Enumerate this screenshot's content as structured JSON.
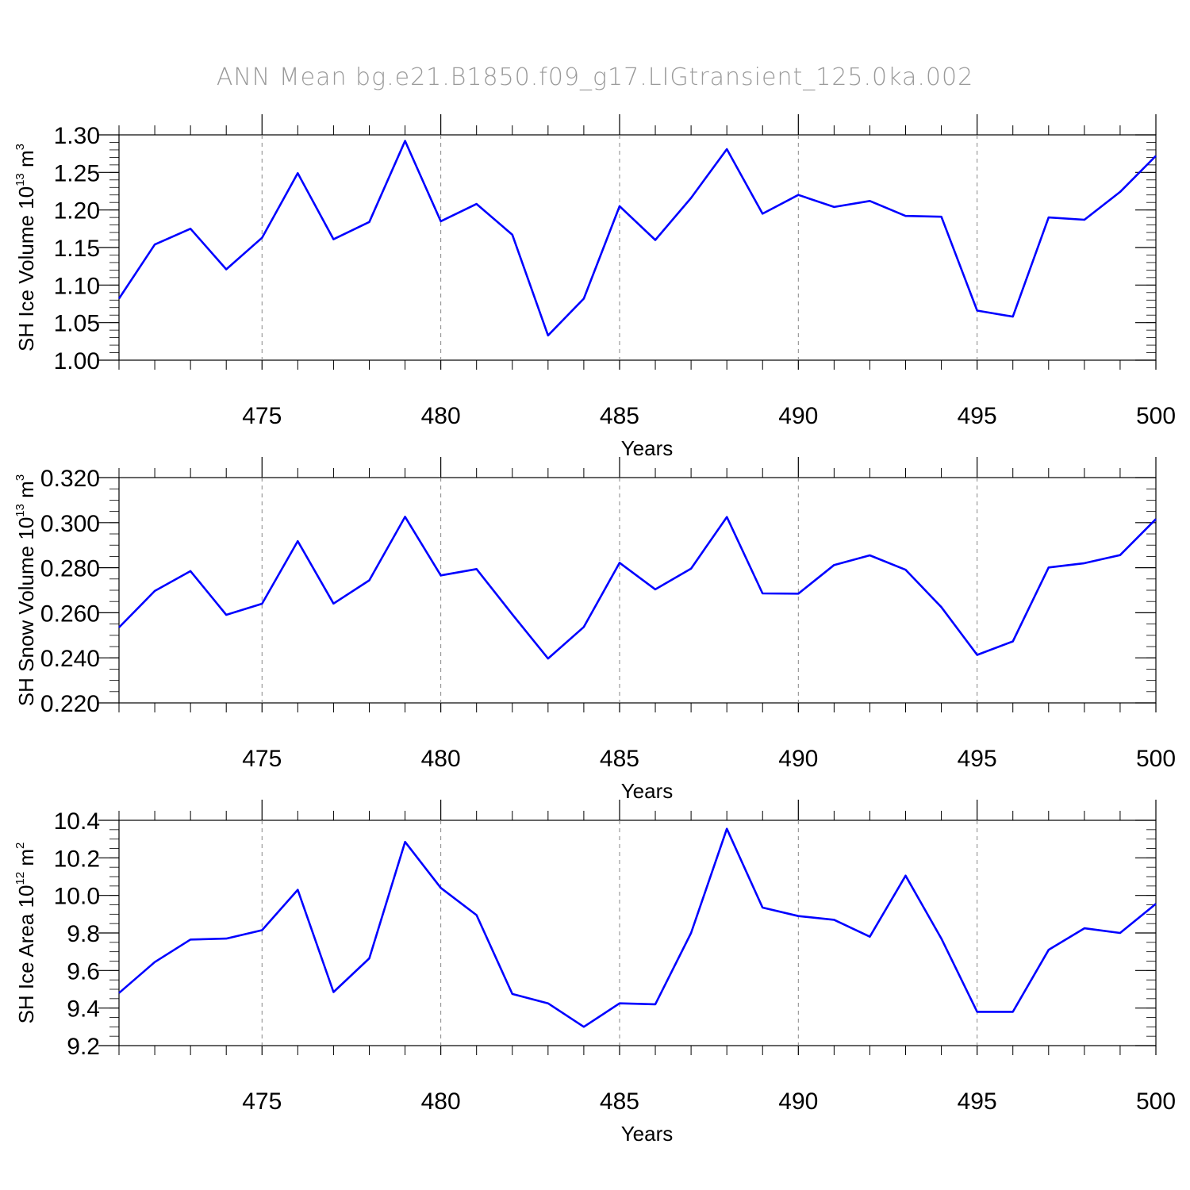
{
  "title": "ANN Mean bg.e21.B1850.f09_g17.LIGtransient_125.0ka.002",
  "chart_data": [
    {
      "type": "line",
      "ylabel_main": "SH Ice Volume 10",
      "ylabel_exp": "13",
      "ylabel_unit": " m",
      "ylabel_unit_exp": "3",
      "xlabel": "Years",
      "xlim": [
        471,
        500
      ],
      "ylim": [
        1.0,
        1.3
      ],
      "yticks": [
        "1.00",
        "1.05",
        "1.10",
        "1.15",
        "1.20",
        "1.25",
        "1.30"
      ],
      "yminor": 0.01,
      "xticks": [
        "475",
        "480",
        "485",
        "490",
        "495",
        "500"
      ],
      "grid": "vertical dashed at major x ticks",
      "line_color": "#0000ff",
      "x": [
        471,
        472,
        473,
        474,
        475,
        476,
        477,
        478,
        479,
        480,
        481,
        482,
        483,
        484,
        485,
        486,
        487,
        488,
        489,
        490,
        491,
        492,
        493,
        494,
        495,
        496,
        497,
        498,
        499,
        500
      ],
      "values": [
        1.082,
        1.154,
        1.175,
        1.121,
        1.163,
        1.249,
        1.161,
        1.184,
        1.292,
        1.185,
        1.208,
        1.167,
        1.033,
        1.082,
        1.205,
        1.16,
        1.216,
        1.281,
        1.195,
        1.22,
        1.204,
        1.212,
        1.192,
        1.191,
        1.066,
        1.058,
        1.19,
        1.187,
        1.224,
        1.272
      ]
    },
    {
      "type": "line",
      "ylabel_main": "SH Snow Volume 10",
      "ylabel_exp": "13",
      "ylabel_unit": " m",
      "ylabel_unit_exp": "3",
      "xlabel": "Years",
      "xlim": [
        471,
        500
      ],
      "ylim": [
        0.22,
        0.32
      ],
      "yticks": [
        "0.220",
        "0.240",
        "0.260",
        "0.280",
        "0.300",
        "0.320"
      ],
      "yminor": 0.005,
      "xticks": [
        "475",
        "480",
        "485",
        "490",
        "495",
        "500"
      ],
      "grid": "vertical dashed at major x ticks",
      "line_color": "#0000ff",
      "x": [
        471,
        472,
        473,
        474,
        475,
        476,
        477,
        478,
        479,
        480,
        481,
        482,
        483,
        484,
        485,
        486,
        487,
        488,
        489,
        490,
        491,
        492,
        493,
        494,
        495,
        496,
        497,
        498,
        499,
        500
      ],
      "values": [
        0.2535,
        0.2697,
        0.2785,
        0.2591,
        0.264,
        0.2918,
        0.2641,
        0.2744,
        0.3026,
        0.2766,
        0.2794,
        0.2593,
        0.2397,
        0.2537,
        0.2822,
        0.2704,
        0.2796,
        0.3025,
        0.2686,
        0.2685,
        0.2812,
        0.2855,
        0.2791,
        0.2625,
        0.2413,
        0.2473,
        0.2801,
        0.282,
        0.2856,
        0.3016
      ]
    },
    {
      "type": "line",
      "ylabel_main": "SH Ice Area 10",
      "ylabel_exp": "12",
      "ylabel_unit": " m",
      "ylabel_unit_exp": "2",
      "xlabel": "Years",
      "xlim": [
        471,
        500
      ],
      "ylim": [
        9.2,
        10.4
      ],
      "yticks": [
        "9.2",
        "9.4",
        "9.6",
        "9.8",
        "10.0",
        "10.2",
        "10.4"
      ],
      "yminor": 0.05,
      "xticks": [
        "475",
        "480",
        "485",
        "490",
        "495",
        "500"
      ],
      "grid": "vertical dashed at major x ticks",
      "line_color": "#0000ff",
      "x": [
        471,
        472,
        473,
        474,
        475,
        476,
        477,
        478,
        479,
        480,
        481,
        482,
        483,
        484,
        485,
        486,
        487,
        488,
        489,
        490,
        491,
        492,
        493,
        494,
        495,
        496,
        497,
        498,
        499,
        500
      ],
      "values": [
        9.48,
        9.645,
        9.765,
        9.77,
        9.815,
        10.03,
        9.485,
        9.665,
        10.285,
        10.04,
        9.895,
        9.475,
        9.425,
        9.3,
        9.425,
        9.42,
        9.8,
        10.355,
        9.935,
        9.89,
        9.87,
        9.78,
        10.105,
        9.77,
        9.38,
        9.38,
        9.71,
        9.825,
        9.8,
        9.955
      ]
    }
  ]
}
